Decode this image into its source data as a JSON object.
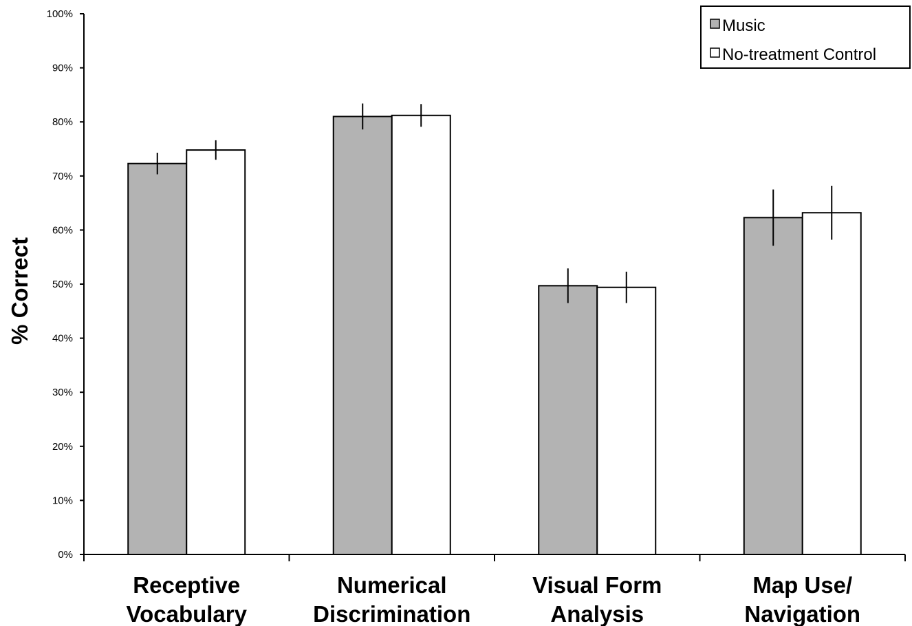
{
  "chart_data": {
    "type": "bar",
    "title": "",
    "xlabel": "",
    "ylabel": "% Correct",
    "ylim": [
      0,
      100
    ],
    "yticks": [
      "0%",
      "10%",
      "20%",
      "30%",
      "40%",
      "50%",
      "60%",
      "70%",
      "80%",
      "90%",
      "100%"
    ],
    "categories": [
      [
        "Receptive",
        "Vocabulary"
      ],
      [
        "Numerical",
        "Discrimination"
      ],
      [
        "Visual Form",
        "Analysis"
      ],
      [
        "Map Use/",
        "Navigation"
      ]
    ],
    "series": [
      {
        "name": "Music",
        "color": "#b3b3b3",
        "values": [
          72.3,
          81.0,
          49.7,
          62.3
        ],
        "error": [
          2.0,
          2.4,
          3.2,
          5.2
        ]
      },
      {
        "name": "No-treatment Control",
        "color": "#ffffff",
        "values": [
          74.8,
          81.2,
          49.4,
          63.2
        ],
        "error": [
          1.8,
          2.1,
          2.9,
          5.0
        ]
      }
    ],
    "legend_position": "top-right",
    "grid": false
  }
}
